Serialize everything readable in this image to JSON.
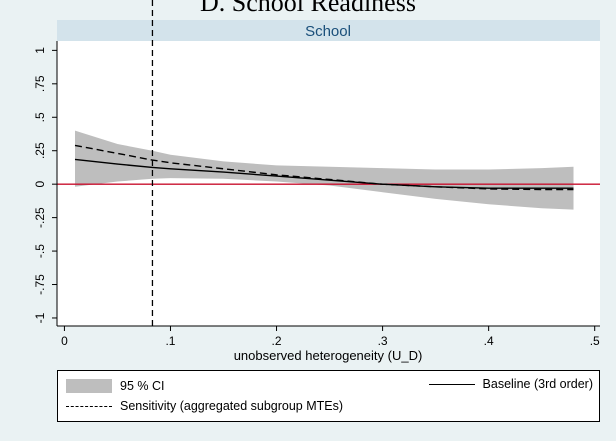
{
  "page": {
    "heading": "D. School Readiness"
  },
  "chart_data": {
    "type": "line",
    "title": "School",
    "xlabel": "unobserved heterogeneity (U_D)",
    "ylabel": "",
    "xlim": [
      0,
      0.5
    ],
    "ylim": [
      -1,
      1
    ],
    "x_ticks": [
      {
        "value": 0,
        "label": "0"
      },
      {
        "value": 0.1,
        "label": ".1"
      },
      {
        "value": 0.2,
        "label": ".2"
      },
      {
        "value": 0.3,
        "label": ".3"
      },
      {
        "value": 0.4,
        "label": ".4"
      },
      {
        "value": 0.5,
        "label": ".5"
      }
    ],
    "y_ticks": [
      {
        "value": 1,
        "label": "1"
      },
      {
        "value": 0.75,
        "label": ".75"
      },
      {
        "value": 0.5,
        "label": ".5"
      },
      {
        "value": 0.25,
        "label": ".25"
      },
      {
        "value": 0,
        "label": "0"
      },
      {
        "value": -0.25,
        "label": "-.25"
      },
      {
        "value": -0.5,
        "label": "-.5"
      },
      {
        "value": -0.75,
        "label": "-.75"
      },
      {
        "value": -1,
        "label": "-1"
      }
    ],
    "reference_lines": {
      "horizontal_y": 0,
      "horizontal_color": "#c8102e",
      "vertical_x": 0.083
    },
    "x": [
      0.01,
      0.05,
      0.083,
      0.1,
      0.15,
      0.2,
      0.25,
      0.3,
      0.35,
      0.4,
      0.45,
      0.48
    ],
    "series": [
      {
        "name": "95 % CI",
        "kind": "band",
        "color": "#bebebe",
        "lower": [
          -0.02,
          0.02,
          0.04,
          0.045,
          0.04,
          0.02,
          -0.01,
          -0.06,
          -0.11,
          -0.15,
          -0.18,
          -0.19
        ],
        "upper": [
          0.4,
          0.3,
          0.25,
          0.22,
          0.17,
          0.14,
          0.13,
          0.12,
          0.11,
          0.11,
          0.12,
          0.13
        ]
      },
      {
        "name": "Baseline (3rd order)",
        "kind": "line",
        "dash": "solid",
        "color": "#000000",
        "values": [
          0.185,
          0.15,
          0.125,
          0.115,
          0.09,
          0.06,
          0.03,
          0.0,
          -0.02,
          -0.03,
          -0.03,
          -0.03
        ]
      },
      {
        "name": "Sensitivity (aggregated subgroup MTEs)",
        "kind": "line",
        "dash": "dashed",
        "color": "#000000",
        "values": [
          0.29,
          0.23,
          0.18,
          0.16,
          0.115,
          0.07,
          0.035,
          0.0,
          -0.02,
          -0.035,
          -0.04,
          -0.04
        ]
      }
    ],
    "grid": false,
    "legend_placement": "bottom"
  },
  "legend": {
    "ci_label": "95 % CI",
    "baseline_label": "Baseline (3rd order)",
    "sensitivity_label": "Sensitivity (aggregated subgroup MTEs)"
  }
}
